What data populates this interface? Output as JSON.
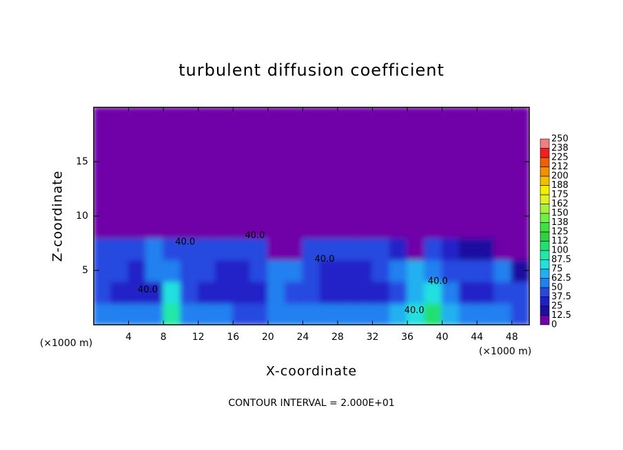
{
  "chart_data": {
    "type": "heatmap",
    "title": "turbulent diffusion coefficient",
    "x_label": "X-coordinate",
    "y_label": "Z-coordinate",
    "x_unit_left": "(×1000 m)",
    "x_unit_right": "(×1000 m)",
    "footnote": "CONTOUR INTERVAL = 2.000E+01",
    "xlim": [
      0,
      50
    ],
    "ylim": [
      0,
      20
    ],
    "xticks": [
      4,
      8,
      12,
      16,
      20,
      24,
      28,
      32,
      36,
      40,
      44,
      48
    ],
    "yticks": [
      5,
      10,
      15
    ],
    "x": [
      1,
      3,
      5,
      7,
      9,
      11,
      13,
      15,
      17,
      19,
      21,
      23,
      25,
      27,
      29,
      31,
      33,
      35,
      37,
      39,
      41,
      43,
      45,
      47,
      49
    ],
    "z": [
      1,
      3,
      5,
      7,
      9,
      11,
      13,
      15,
      17,
      19
    ],
    "values": [
      [
        55,
        50,
        50,
        60,
        95,
        60,
        55,
        50,
        45,
        45,
        50,
        55,
        60,
        55,
        60,
        50,
        55,
        65,
        80,
        100,
        70,
        60,
        55,
        50,
        45
      ],
      [
        45,
        35,
        30,
        35,
        80,
        45,
        35,
        30,
        30,
        35,
        50,
        45,
        40,
        35,
        30,
        35,
        30,
        45,
        70,
        80,
        50,
        35,
        30,
        40,
        40
      ],
      [
        45,
        40,
        35,
        50,
        60,
        45,
        40,
        30,
        30,
        40,
        50,
        55,
        40,
        35,
        35,
        35,
        40,
        60,
        65,
        55,
        45,
        40,
        45,
        50,
        20
      ],
      [
        40,
        45,
        45,
        50,
        45,
        40,
        45,
        45,
        45,
        45,
        10,
        5,
        40,
        45,
        45,
        45,
        40,
        35,
        10,
        45,
        30,
        20,
        15,
        10,
        5
      ],
      [
        0,
        0,
        0,
        0,
        0,
        0,
        5,
        10,
        5,
        0,
        0,
        0,
        0,
        0,
        0,
        5,
        0,
        0,
        0,
        0,
        0,
        0,
        0,
        0,
        0
      ],
      [
        0,
        0,
        0,
        0,
        0,
        0,
        0,
        0,
        0,
        0,
        0,
        0,
        0,
        0,
        0,
        0,
        0,
        0,
        0,
        0,
        0,
        0,
        0,
        0,
        0
      ],
      [
        0,
        0,
        0,
        0,
        0,
        0,
        0,
        0,
        0,
        0,
        0,
        0,
        0,
        0,
        0,
        0,
        0,
        0,
        0,
        0,
        0,
        0,
        0,
        0,
        0
      ],
      [
        0,
        0,
        0,
        0,
        0,
        0,
        0,
        0,
        0,
        0,
        0,
        0,
        0,
        0,
        0,
        0,
        0,
        0,
        0,
        0,
        0,
        0,
        0,
        0,
        0
      ],
      [
        0,
        0,
        0,
        0,
        0,
        0,
        0,
        0,
        0,
        0,
        0,
        0,
        0,
        0,
        0,
        0,
        0,
        0,
        0,
        0,
        0,
        0,
        0,
        0,
        0
      ],
      [
        0,
        0,
        0,
        0,
        0,
        0,
        0,
        0,
        0,
        0,
        0,
        0,
        0,
        0,
        0,
        0,
        0,
        0,
        0,
        0,
        0,
        0,
        0,
        0,
        0
      ]
    ],
    "levels": [
      0,
      12.5,
      25,
      37.5,
      50,
      62.5,
      75,
      87.5,
      100,
      {
        "value": 112.5,
        "label": "112"
      },
      125,
      {
        "value": 137.5,
        "label": "138"
      },
      150,
      {
        "value": 162.5,
        "label": "162"
      },
      175,
      {
        "value": 187.5,
        "label": "188"
      },
      200,
      {
        "value": 212.5,
        "label": "212"
      },
      225,
      {
        "value": 237.5,
        "label": "238"
      },
      250
    ],
    "colors": [
      "#7000a8",
      "#1a10a0",
      "#2020c8",
      "#2848e0",
      "#2080f0",
      "#20b0f0",
      "#20e0e0",
      "#20e8a8",
      "#20e070",
      "#30d040",
      "#40e040",
      "#70f040",
      "#a8f040",
      "#e0f020",
      "#f0f000",
      "#f0c000",
      "#f09000",
      "#f06000",
      "#f02020",
      "#f08080"
    ],
    "contour_labels": [
      {
        "text": "40.0",
        "x": 10.5,
        "z": 7.6
      },
      {
        "text": "40.0",
        "x": 18.5,
        "z": 8.2
      },
      {
        "text": "40.0",
        "x": 6.2,
        "z": 3.2
      },
      {
        "text": "40.0",
        "x": 26.5,
        "z": 6.0
      },
      {
        "text": "40.0",
        "x": 36.8,
        "z": 1.3
      },
      {
        "text": "40.0",
        "x": 39.5,
        "z": 4.0
      }
    ]
  }
}
